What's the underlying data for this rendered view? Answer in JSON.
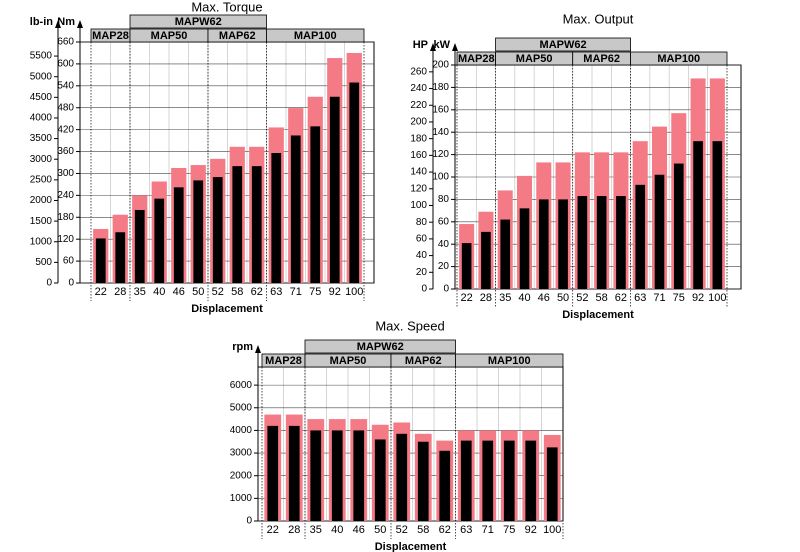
{
  "chart_data": [
    {
      "type": "bar",
      "title": "Max. Torque",
      "x_label": "Displacement",
      "y_label": "Nm",
      "y2_label": "lb-in",
      "categories": [
        "22",
        "28",
        "35",
        "40",
        "46",
        "50",
        "52",
        "58",
        "62",
        "63",
        "71",
        "75",
        "92",
        "100"
      ],
      "series": [
        {
          "color": "#f47a86",
          "values": [
            148,
            187,
            240,
            278,
            315,
            323,
            340,
            373,
            373,
            426,
            479,
            510,
            616,
            630
          ]
        },
        {
          "color": "#000000",
          "values": [
            122,
            139,
            200,
            231,
            262,
            281,
            290,
            320,
            320,
            356,
            404,
            429,
            510,
            549
          ]
        }
      ],
      "groups": [
        {
          "label": "MAP28",
          "from": 0,
          "to": 1
        },
        {
          "label": "MAP50",
          "from": 2,
          "to": 5
        },
        {
          "label": "MAP62",
          "from": 6,
          "to": 8
        },
        {
          "label": "MAP100",
          "from": 9,
          "to": 13
        }
      ],
      "top_group": {
        "label": "MAPW62",
        "from": 2,
        "to": 8
      },
      "ylim": [
        0,
        660
      ],
      "yticks": [
        0,
        60,
        120,
        180,
        240,
        300,
        360,
        420,
        480,
        540,
        600,
        660
      ],
      "y2lim": [
        0,
        5841
      ],
      "y2ticks": [
        0,
        500,
        1000,
        1500,
        2000,
        2500,
        3000,
        3500,
        4000,
        4500,
        5000,
        5500
      ],
      "grid": true
    },
    {
      "type": "bar",
      "title": "Max. Output",
      "x_label": "Displacement",
      "y_label": "kW",
      "y2_label": "HP",
      "categories": [
        "22",
        "28",
        "35",
        "40",
        "46",
        "50",
        "52",
        "58",
        "62",
        "63",
        "71",
        "75",
        "92",
        "100"
      ],
      "series": [
        {
          "color": "#f47a86",
          "values": [
            58,
            69,
            88,
            101,
            113,
            113,
            122,
            122,
            122,
            132,
            145,
            157,
            188,
            188
          ]
        },
        {
          "color": "#000000",
          "values": [
            41,
            51,
            62,
            72,
            80,
            80,
            83,
            83,
            83,
            93,
            102,
            112,
            132,
            132
          ]
        }
      ],
      "groups": [
        {
          "label": "MAP28",
          "from": 0,
          "to": 1
        },
        {
          "label": "MAP50",
          "from": 2,
          "to": 5
        },
        {
          "label": "MAP62",
          "from": 6,
          "to": 8
        },
        {
          "label": "MAP100",
          "from": 9,
          "to": 13
        }
      ],
      "top_group": {
        "label": "MAPW62",
        "from": 2,
        "to": 8
      },
      "ylim": [
        0,
        200
      ],
      "yticks": [
        0,
        20,
        40,
        60,
        80,
        100,
        120,
        140,
        160,
        180,
        200
      ],
      "y2lim": [
        0,
        268.2
      ],
      "y2ticks": [
        0,
        20,
        40,
        60,
        80,
        100,
        120,
        140,
        160,
        180,
        200,
        220,
        240,
        260
      ],
      "grid": true
    },
    {
      "type": "bar",
      "title": "Max. Speed",
      "x_label": "Displacement",
      "y_label": "rpm",
      "categories": [
        "22",
        "28",
        "35",
        "40",
        "46",
        "50",
        "52",
        "58",
        "62",
        "63",
        "71",
        "75",
        "92",
        "100"
      ],
      "series": [
        {
          "color": "#f47a86",
          "values": [
            4700,
            4700,
            4500,
            4500,
            4500,
            4250,
            4350,
            3850,
            3550,
            4000,
            4000,
            4000,
            4000,
            3800
          ]
        },
        {
          "color": "#000000",
          "values": [
            4200,
            4200,
            4000,
            4000,
            4000,
            3600,
            3850,
            3500,
            3100,
            3550,
            3550,
            3550,
            3550,
            3250
          ]
        }
      ],
      "groups": [
        {
          "label": "MAP28",
          "from": 0,
          "to": 1
        },
        {
          "label": "MAP50",
          "from": 2,
          "to": 5
        },
        {
          "label": "MAP62",
          "from": 6,
          "to": 8
        },
        {
          "label": "MAP100",
          "from": 9,
          "to": 13
        }
      ],
      "top_group": {
        "label": "MAPW62",
        "from": 2,
        "to": 8
      },
      "ylim": [
        0,
        6800
      ],
      "yticks": [
        0,
        1000,
        2000,
        3000,
        4000,
        5000,
        6000
      ],
      "grid": true
    }
  ]
}
